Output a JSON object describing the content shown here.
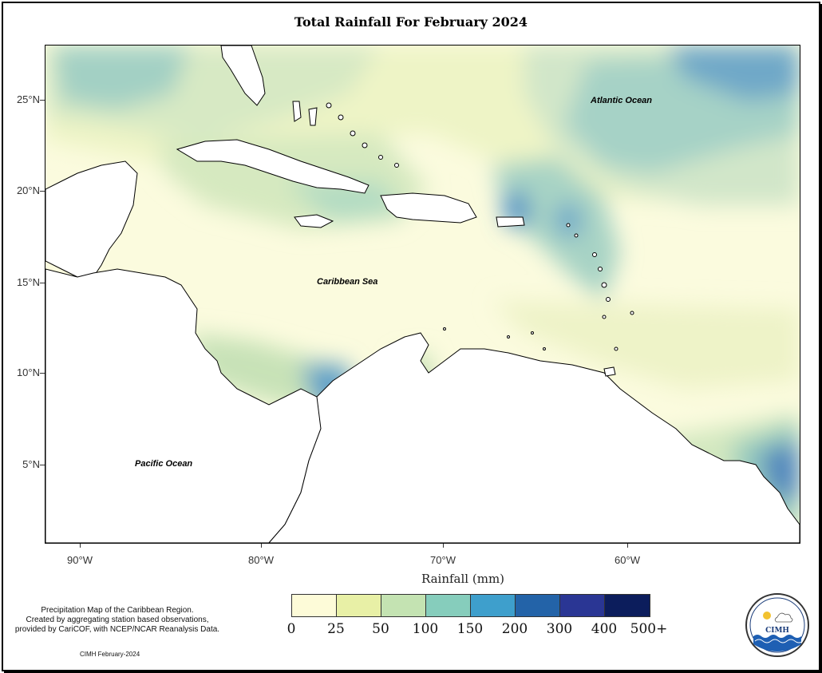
{
  "title": "Total Rainfall For February 2024",
  "axes": {
    "lat_labels": [
      "25°N",
      "20°N",
      "15°N",
      "10°N",
      "5°N"
    ],
    "lon_labels": [
      "90°W",
      "80°W",
      "70°W",
      "60°W"
    ]
  },
  "ocean_labels": {
    "atlantic": "Atlantic Ocean",
    "caribbean": "Caribbean Sea",
    "pacific": "Pacific Ocean"
  },
  "legend": {
    "title": "Rainfall (mm)",
    "labels": [
      "0",
      "25",
      "50",
      "100",
      "150",
      "200",
      "300",
      "400",
      "500+"
    ],
    "colors": [
      "#fdfbd8",
      "#e8f0a6",
      "#c4e3b2",
      "#86cdbc",
      "#3e9fcc",
      "#2363a8",
      "#2a3694",
      "#0c1d5c"
    ]
  },
  "description": {
    "line1": "Precipitation Map of the Caribbean Region.",
    "line2": "Created by aggregating station based observations,",
    "line3": "provided by CariCOF, with NCEP/NCAR Reanalysis Data."
  },
  "credit": "CIMH February-2024",
  "logo": {
    "text": "CIMH",
    "icon": "cimh-logo-icon"
  }
}
